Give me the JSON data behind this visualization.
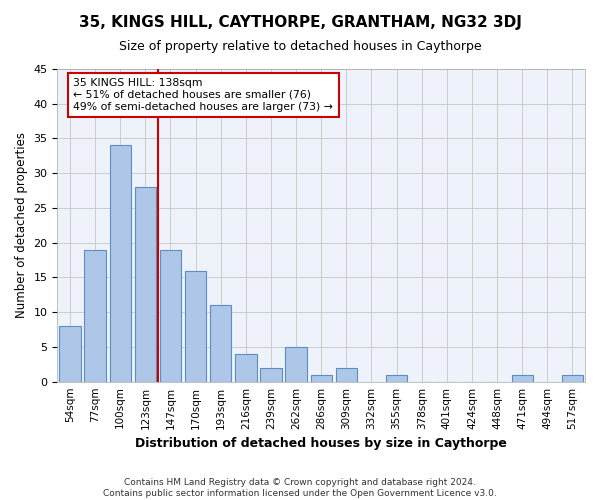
{
  "title": "35, KINGS HILL, CAYTHORPE, GRANTHAM, NG32 3DJ",
  "subtitle": "Size of property relative to detached houses in Caythorpe",
  "xlabel": "Distribution of detached houses by size in Caythorpe",
  "ylabel": "Number of detached properties",
  "bar_values": [
    8,
    19,
    34,
    28,
    19,
    16,
    11,
    4,
    2,
    5,
    1,
    2,
    0,
    1,
    0,
    0,
    0,
    0,
    1,
    0,
    1
  ],
  "bar_labels": [
    "54sqm",
    "77sqm",
    "100sqm",
    "123sqm",
    "147sqm",
    "170sqm",
    "193sqm",
    "216sqm",
    "239sqm",
    "262sqm",
    "286sqm",
    "309sqm",
    "332sqm",
    "355sqm",
    "378sqm",
    "401sqm",
    "424sqm",
    "448sqm",
    "471sqm",
    "494sqm",
    "517sqm"
  ],
  "bar_color": "#aec6e8",
  "bar_edge_color": "#5a8fc2",
  "grid_color": "#cccccc",
  "background_color": "#eef2fb",
  "vline_color": "#cc0000",
  "annotation_text": "35 KINGS HILL: 138sqm\n← 51% of detached houses are smaller (76)\n49% of semi-detached houses are larger (73) →",
  "annotation_box_color": "#ffffff",
  "annotation_box_edge": "#cc0000",
  "footer": "Contains HM Land Registry data © Crown copyright and database right 2024.\nContains public sector information licensed under the Open Government Licence v3.0.",
  "ylim": [
    0,
    45
  ],
  "yticks": [
    0,
    5,
    10,
    15,
    20,
    25,
    30,
    35,
    40,
    45
  ],
  "vline_pos": 3.5
}
